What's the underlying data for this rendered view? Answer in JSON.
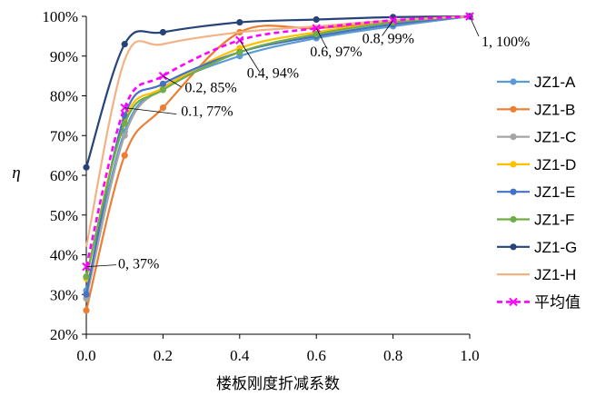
{
  "chart_data": {
    "type": "line",
    "title": "",
    "xlabel": "楼板刚度折减系数",
    "ylabel": "η",
    "x": [
      0,
      0.1,
      0.2,
      0.4,
      0.6,
      0.8,
      1.0
    ],
    "xlim": [
      0,
      1.0
    ],
    "ylim": [
      20,
      100
    ],
    "x_ticks": [
      "0.0",
      "0.2",
      "0.4",
      "0.6",
      "0.8",
      "1.0"
    ],
    "y_ticks": [
      "20%",
      "30%",
      "40%",
      "50%",
      "60%",
      "70%",
      "80%",
      "90%",
      "100%"
    ],
    "grid": false,
    "legend_position": "right",
    "series": [
      {
        "name": "JZ1-A",
        "color": "#5b9bd5",
        "marker": "circle",
        "values": [
          31,
          71,
          82,
          90,
          94.5,
          97.5,
          100
        ]
      },
      {
        "name": "JZ1-B",
        "color": "#ed7d31",
        "marker": "circle",
        "values": [
          26,
          65,
          77,
          96,
          97,
          98.5,
          100
        ]
      },
      {
        "name": "JZ1-C",
        "color": "#a5a5a5",
        "marker": "circle",
        "values": [
          29,
          70,
          82,
          91,
          95,
          98,
          100
        ]
      },
      {
        "name": "JZ1-D",
        "color": "#ffc000",
        "marker": "circle",
        "values": [
          34,
          74,
          82,
          92,
          96,
          98.5,
          100
        ]
      },
      {
        "name": "JZ1-E",
        "color": "#4472c4",
        "marker": "circle",
        "values": [
          30,
          75,
          83,
          91,
          95,
          98,
          100
        ]
      },
      {
        "name": "JZ1-F",
        "color": "#70ad47",
        "marker": "circle",
        "values": [
          34.5,
          73,
          81.5,
          91,
          95.5,
          98.5,
          100
        ]
      },
      {
        "name": "JZ1-G",
        "color": "#264478",
        "marker": "circle",
        "values": [
          62,
          93,
          96,
          98.5,
          99.2,
          99.8,
          100
        ]
      },
      {
        "name": "JZ1-H",
        "color": "#f4b183",
        "marker": "none",
        "values": [
          42,
          89,
          93,
          96,
          97.5,
          99,
          100
        ]
      },
      {
        "name": "平均值",
        "color": "#ff00ff",
        "marker": "x",
        "dashed": true,
        "values": [
          37,
          77,
          85,
          94,
          97,
          99,
          100
        ]
      }
    ],
    "annotations": [
      {
        "text": "0, 37%",
        "x": 0,
        "y": 37
      },
      {
        "text": "0.1, 77%",
        "x": 0.1,
        "y": 77
      },
      {
        "text": "0.2, 85%",
        "x": 0.2,
        "y": 85
      },
      {
        "text": "0.4, 94%",
        "x": 0.4,
        "y": 94
      },
      {
        "text": "0.6, 97%",
        "x": 0.6,
        "y": 97
      },
      {
        "text": "0.8, 99%",
        "x": 0.8,
        "y": 99
      },
      {
        "text": "1, 100%",
        "x": 1.0,
        "y": 100
      }
    ]
  }
}
